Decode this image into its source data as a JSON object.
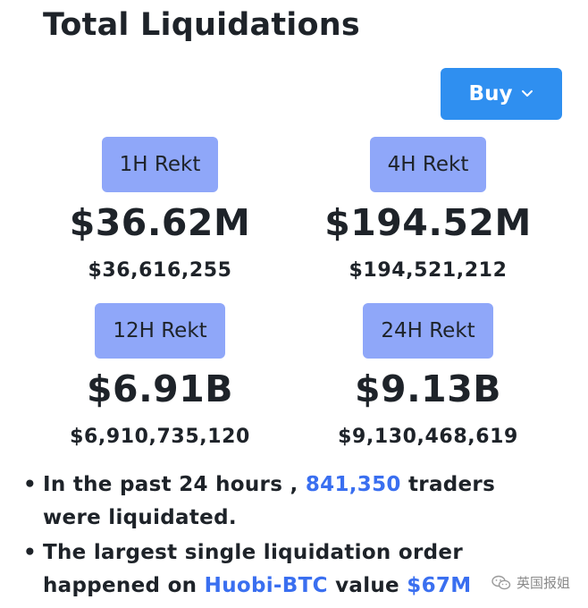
{
  "header": {
    "title": "Total Liquidations",
    "buy_label": "Buy"
  },
  "stats": [
    {
      "label": "1H Rekt",
      "short": "$36.62M",
      "exact": "$36,616,255"
    },
    {
      "label": "4H Rekt",
      "short": "$194.52M",
      "exact": "$194,521,212"
    },
    {
      "label": "12H Rekt",
      "short": "$6.91B",
      "exact": "$6,910,735,120"
    },
    {
      "label": "24H Rekt",
      "short": "$9.13B",
      "exact": "$9,130,468,619"
    }
  ],
  "bullets": {
    "b1_pre": "In the past 24 hours , ",
    "b1_num": "841,350",
    "b1_post": " traders were liquidated.",
    "b2_pre": "The largest single liquidation order happened on ",
    "b2_pair": "Huobi-BTC",
    "b2_mid": " value ",
    "b2_val": "$67M"
  },
  "watermark": {
    "text": "英国报姐",
    "icon": "wechat-icon"
  },
  "colors": {
    "accent": "#2f8ff0",
    "pill": "#8fa7f9",
    "link": "#3a6ff0"
  }
}
